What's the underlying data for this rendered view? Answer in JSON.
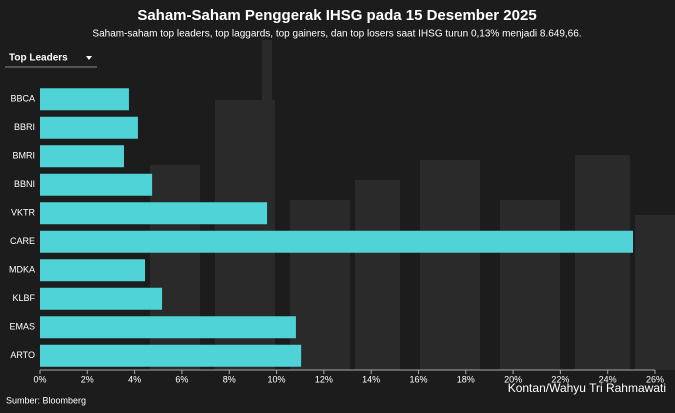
{
  "chart_data": {
    "type": "bar",
    "orientation": "horizontal",
    "title": "Saham-Saham Penggerak IHSG pada 15 Desember 2025",
    "subtitle": "Saham-saham top leaders, top laggards, top gainers, dan top losers saat IHSG turun 0,13% menjadi 8.649,66.",
    "selector": "Top Leaders",
    "categories": [
      "BBCA",
      "BBRI",
      "BMRI",
      "BBNI",
      "VKTR",
      "CARE",
      "MDKA",
      "KLBF",
      "EMAS",
      "ARTO"
    ],
    "values": [
      3.76,
      4.14,
      3.55,
      4.74,
      9.6,
      25.07,
      4.44,
      5.16,
      10.82,
      11.04
    ],
    "color": "#4fd3d6",
    "xlim": [
      0,
      26
    ],
    "xticks": [
      {
        "value": 0,
        "label": "0%"
      },
      {
        "value": 2,
        "label": "2%"
      },
      {
        "value": 4,
        "label": "4%"
      },
      {
        "value": 6,
        "label": "6%"
      },
      {
        "value": 8,
        "label": "8%"
      },
      {
        "value": 10,
        "label": "10%"
      },
      {
        "value": 12,
        "label": "12%"
      },
      {
        "value": 14,
        "label": "14%"
      },
      {
        "value": 16,
        "label": "16%"
      },
      {
        "value": 18,
        "label": "18%"
      },
      {
        "value": 20,
        "label": "20%"
      },
      {
        "value": 22,
        "label": "22%"
      },
      {
        "value": 24,
        "label": "24%"
      },
      {
        "value": 26,
        "label": "26%"
      }
    ],
    "source": "Sumber: Bloomberg",
    "credit": "Kontan/Wahyu Tri Rahmawati"
  }
}
